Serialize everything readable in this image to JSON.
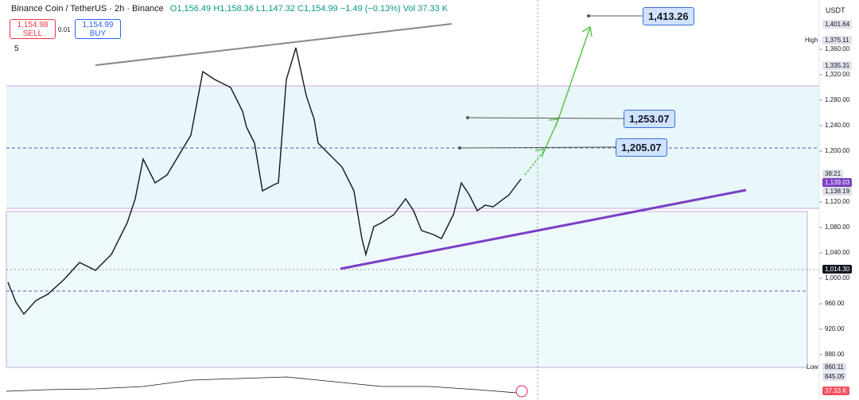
{
  "header": {
    "symbol": "Binance Coin / TetherUS · 2h · Binance",
    "ohlc": "O1,156.49 H1,158.36 L1,147.32 C1,154.99 −1.49 (−0.13%) Vol 37.33 K"
  },
  "trade": {
    "sell_price": "1,154.98",
    "sell": "SELL",
    "spread": "0.01",
    "buy_price": "1,154.99",
    "buy": "BUY"
  },
  "indicators_count": "5",
  "currency": "USDT",
  "price_axis": {
    "ticks": [
      {
        "value": 1360,
        "label": "1,360.00"
      },
      {
        "value": 1320,
        "label": "1,320.00"
      },
      {
        "value": 1280,
        "label": "1,280.00"
      },
      {
        "value": 1240,
        "label": "1,240.00"
      },
      {
        "value": 1200,
        "label": "1,200.00"
      },
      {
        "value": 1120,
        "label": "1,120.00"
      },
      {
        "value": 1080,
        "label": "1,080.00"
      },
      {
        "value": 1040,
        "label": "1,040.00"
      },
      {
        "value": 1000,
        "label": "1,000.00"
      },
      {
        "value": 960,
        "label": "960.00"
      },
      {
        "value": 920,
        "label": "920.00"
      },
      {
        "value": 880,
        "label": "880.00"
      }
    ]
  },
  "side_labels": {
    "top": "1,401.64",
    "high_tag": "High",
    "high": "1,375.11",
    "level": "1,335.31",
    "countdown": "38:21",
    "last": "1,139.03",
    "mark": "1,138.19",
    "cross": "1,014.30",
    "low_tag": "Low",
    "low": "860.11",
    "level2": "845.05",
    "volume": "37.33 K"
  },
  "callouts": [
    "1,413.26",
    "1,253.07",
    "1,205.07"
  ]
}
